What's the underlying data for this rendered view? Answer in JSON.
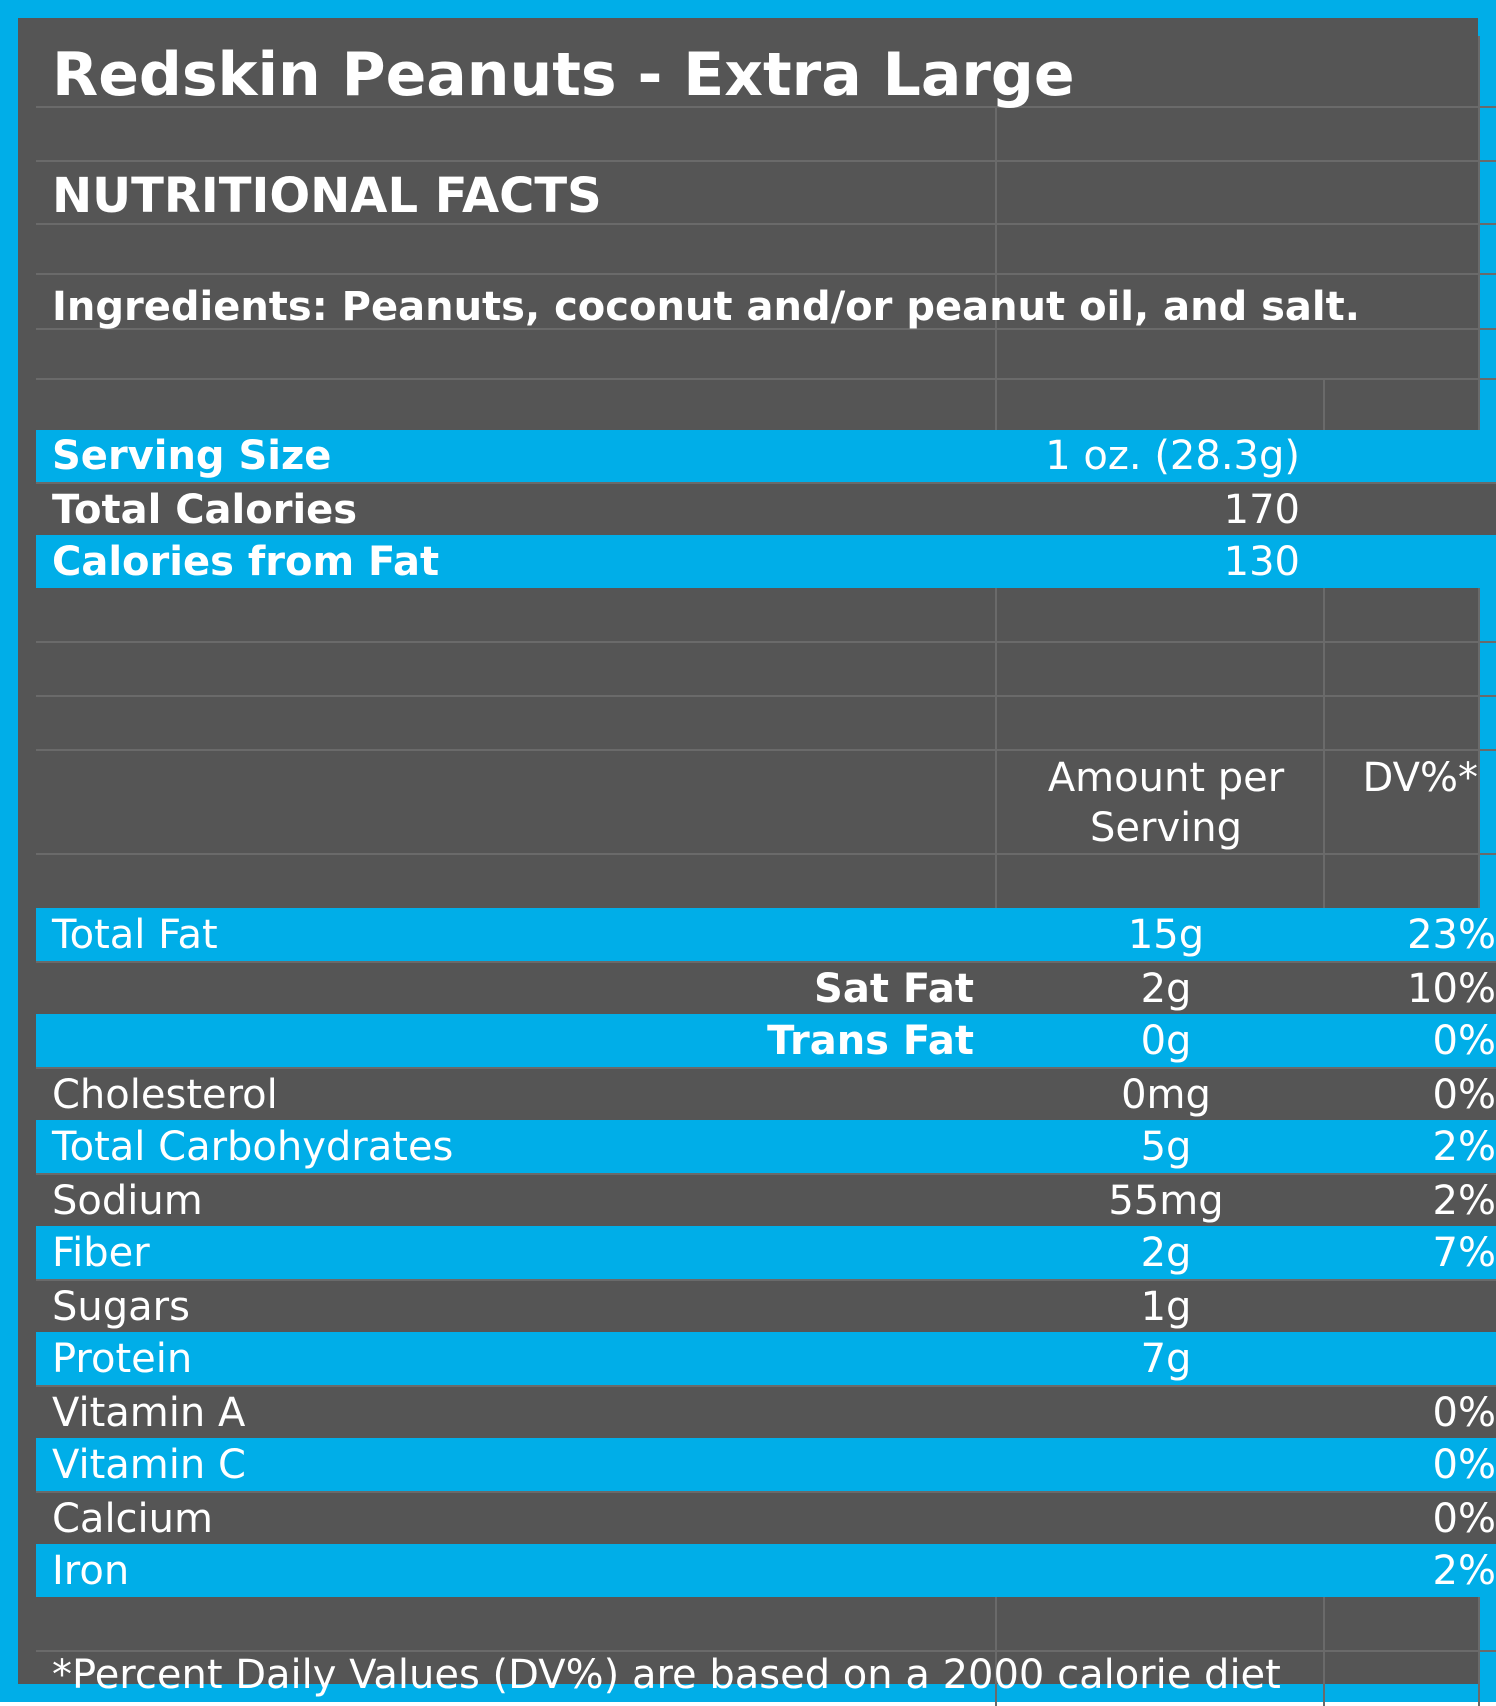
{
  "header": {
    "title": "Redskin Peanuts - Extra Large",
    "subtitle": "NUTRITIONAL FACTS",
    "ingredients": "Ingredients: Peanuts, coconut and/or peanut oil, and salt."
  },
  "summary": [
    {
      "label": "Serving Size",
      "value": "1 oz. (28.3g)"
    },
    {
      "label": "Total Calories",
      "value": "170"
    },
    {
      "label": "Calories from Fat",
      "value": "130"
    }
  ],
  "columns": {
    "amount_line1": "Amount per",
    "amount_line2": "Serving",
    "dv": "DV%*"
  },
  "nutrients": [
    {
      "name": "Total Fat",
      "amount": "15g",
      "dv": "23%"
    },
    {
      "name": "Sat Fat",
      "amount": "2g",
      "dv": "10%"
    },
    {
      "name": "Trans Fat",
      "amount": "0g",
      "dv": "0%"
    },
    {
      "name": "Cholesterol",
      "amount": "0mg",
      "dv": "0%"
    },
    {
      "name": "Total Carbohydrates",
      "amount": "5g",
      "dv": "2%"
    },
    {
      "name": "Sodium",
      "amount": "55mg",
      "dv": "2%"
    },
    {
      "name": "Fiber",
      "amount": "2g",
      "dv": "7%"
    },
    {
      "name": "Sugars",
      "amount": "1g",
      "dv": ""
    },
    {
      "name": "Protein",
      "amount": "7g",
      "dv": ""
    },
    {
      "name": "Vitamin A",
      "amount": "",
      "dv": "0%"
    },
    {
      "name": "Vitamin C",
      "amount": "",
      "dv": "0%"
    },
    {
      "name": "Calcium",
      "amount": "",
      "dv": "0%"
    },
    {
      "name": "Iron",
      "amount": "",
      "dv": "2%"
    }
  ],
  "footnote": "*Percent Daily Values (DV%) are based on a 2000 calorie diet",
  "colors": {
    "accent": "#00aee8",
    "panel": "#555555",
    "text": "#ffffff"
  }
}
